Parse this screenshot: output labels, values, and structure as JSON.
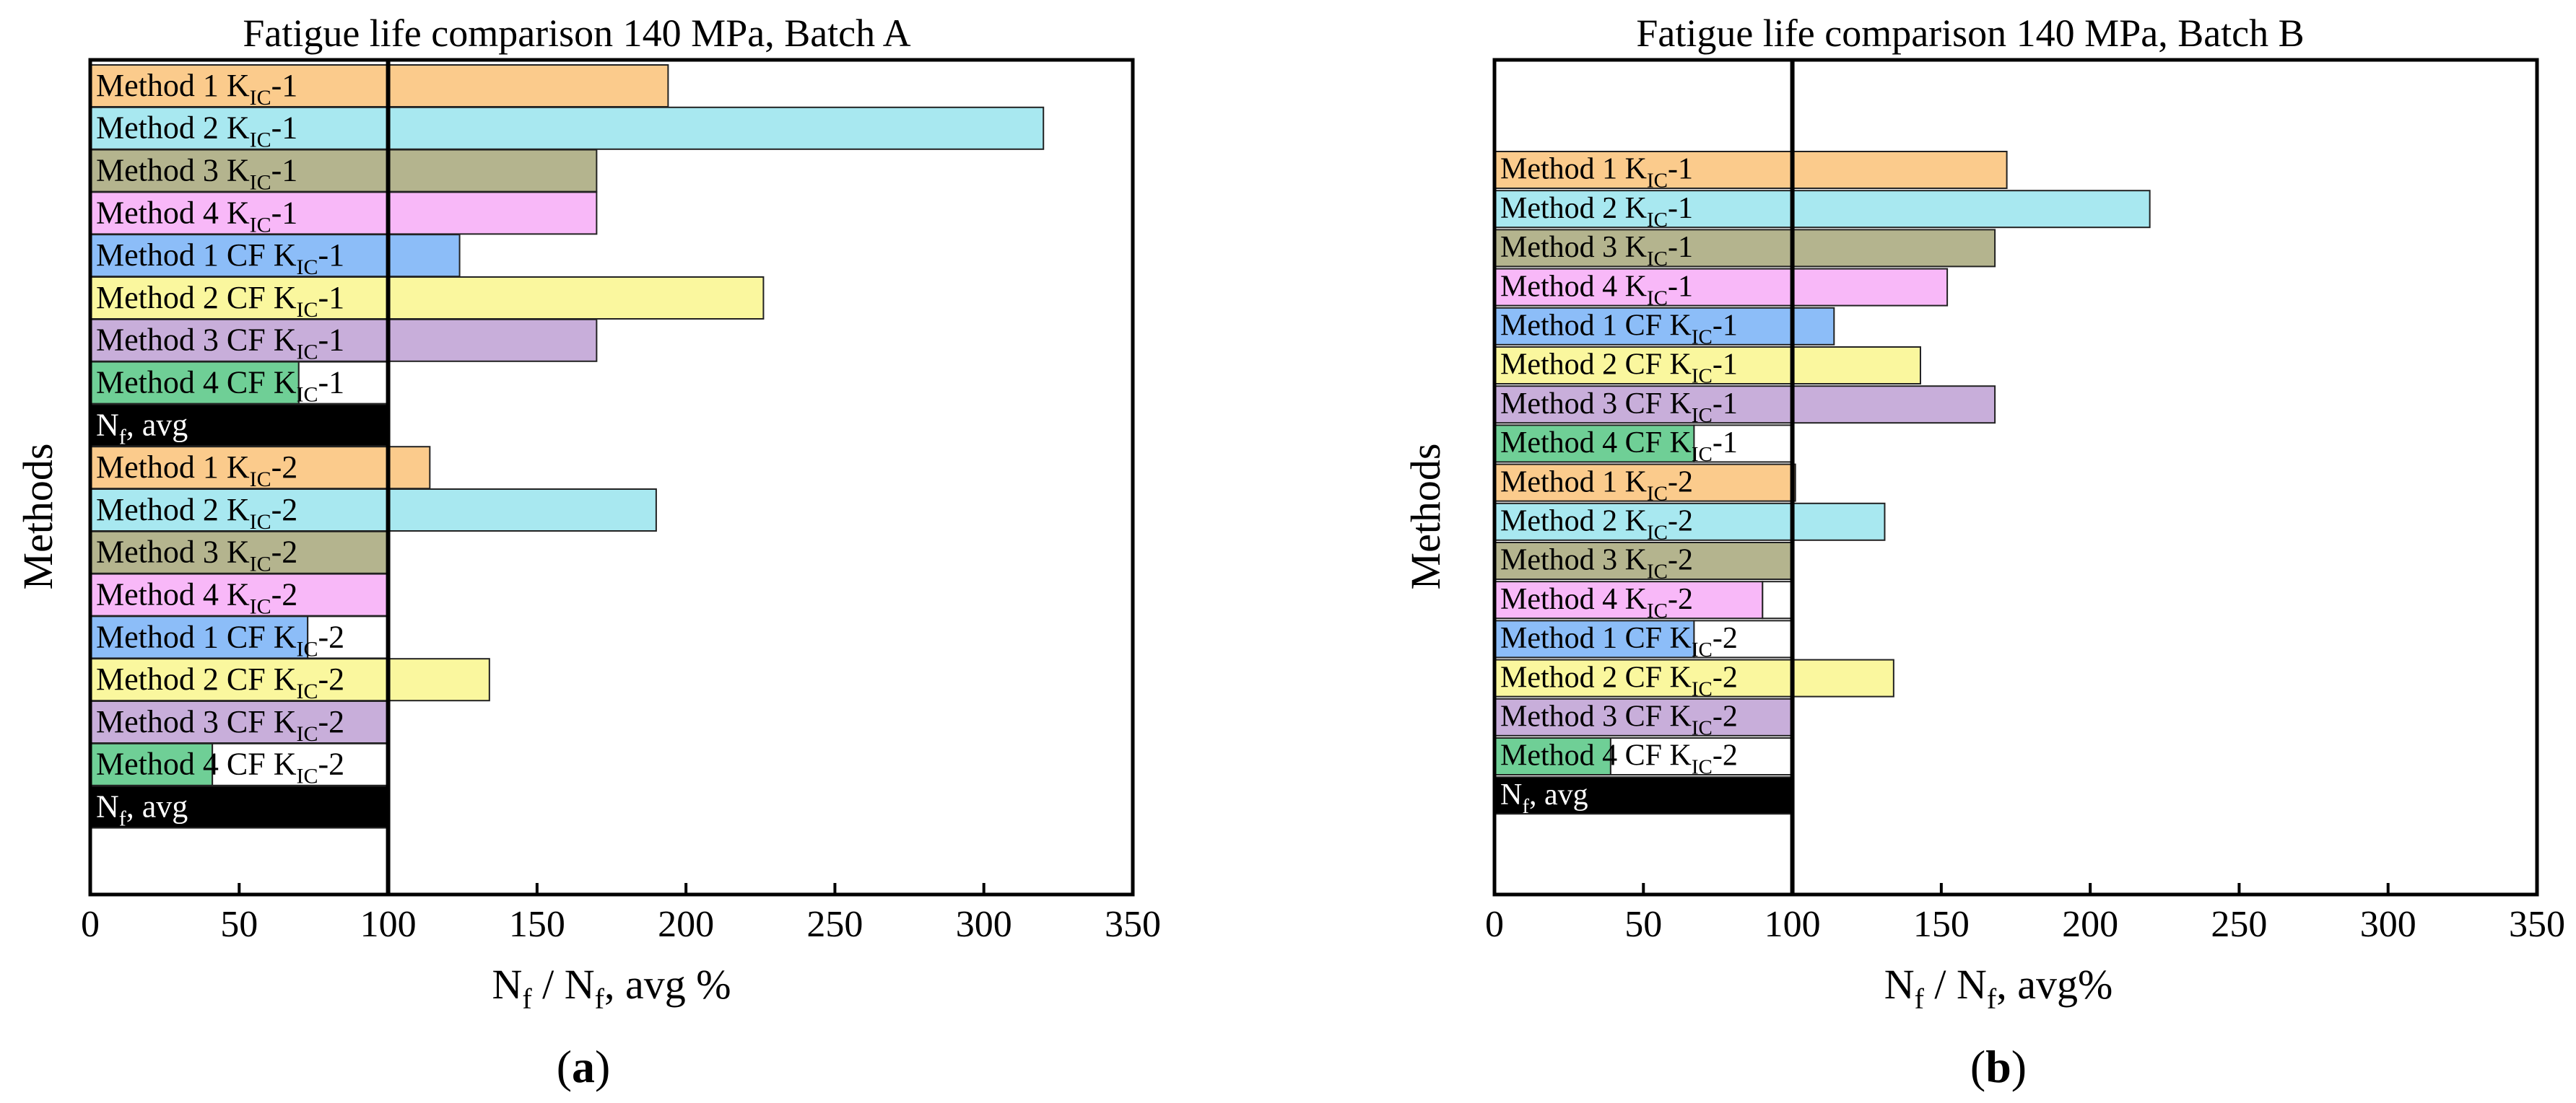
{
  "figure": {
    "panels": [
      {
        "label": "a"
      },
      {
        "label": "b"
      }
    ]
  },
  "colors": {
    "method1": "#FBCB8C",
    "method2": "#A8E8F0",
    "method3": "#B4B48E",
    "method4": "#F8B8F8",
    "method1cf": "#8CBDF8",
    "method2cf": "#FAF79E",
    "method3cf": "#C8AEDA",
    "method4cf": "#6FCF96",
    "avg": "#000000"
  },
  "chart_data": [
    {
      "type": "bar",
      "orientation": "horizontal",
      "title": "Fatigue life comparison 140 MPa, Batch A",
      "xlabel_main": "N",
      "xlabel_sub1": "f",
      "xlabel_mid": " / N",
      "xlabel_sub2": "f",
      "xlabel_end": ", avg %",
      "ylabel": "Methods",
      "xlim": [
        0,
        350
      ],
      "xticks": [
        "0",
        "50",
        "100",
        "150",
        "200",
        "250",
        "300",
        "350"
      ],
      "reference_line": 100,
      "categories": [
        {
          "pre": "Method 1 K",
          "sub": "IC",
          "post": "-1",
          "value": 194,
          "color": "method1"
        },
        {
          "pre": "Method 2 K",
          "sub": "IC",
          "post": "-1",
          "value": 320,
          "color": "method2"
        },
        {
          "pre": "Method 3 K",
          "sub": "IC",
          "post": "-1",
          "value": 170,
          "color": "method3"
        },
        {
          "pre": "Method 4 K",
          "sub": "IC",
          "post": "-1",
          "value": 170,
          "color": "method4"
        },
        {
          "pre": "Method 1 CF K",
          "sub": "IC",
          "post": "-1",
          "value": 124,
          "color": "method1cf"
        },
        {
          "pre": "Method 2 CF K",
          "sub": "IC",
          "post": "-1",
          "value": 226,
          "color": "method2cf"
        },
        {
          "pre": "Method 3 CF K",
          "sub": "IC",
          "post": "-1",
          "value": 170,
          "color": "method3cf"
        },
        {
          "pre": "Method 4 CF K",
          "sub": "IC",
          "post": "-1",
          "value": 70,
          "color": "method4cf"
        },
        {
          "pre": "N",
          "sub": "f",
          "post": ", avg",
          "value": 100,
          "color": "avg"
        },
        {
          "pre": "Method 1 K",
          "sub": "IC",
          "post": "-2",
          "value": 114,
          "color": "method1"
        },
        {
          "pre": "Method 2 K",
          "sub": "IC",
          "post": "-2",
          "value": 190,
          "color": "method2"
        },
        {
          "pre": "Method 3 K",
          "sub": "IC",
          "post": "-2",
          "value": 100,
          "color": "method3"
        },
        {
          "pre": "Method 4 K",
          "sub": "IC",
          "post": "-2",
          "value": 100,
          "color": "method4"
        },
        {
          "pre": "Method 1 CF K",
          "sub": "IC",
          "post": "-2",
          "value": 73,
          "color": "method1cf"
        },
        {
          "pre": "Method 2 CF K",
          "sub": "IC",
          "post": "-2",
          "value": 134,
          "color": "method2cf"
        },
        {
          "pre": "Method 3 CF K",
          "sub": "IC",
          "post": "-2",
          "value": 100,
          "color": "method3cf"
        },
        {
          "pre": "Method 4 CF K",
          "sub": "IC",
          "post": "-2",
          "value": 41,
          "color": "method4cf"
        },
        {
          "pre": "N",
          "sub": "f",
          "post": ", avg",
          "value": 100,
          "color": "avg"
        }
      ]
    },
    {
      "type": "bar",
      "orientation": "horizontal",
      "title": "Fatigue life comparison 140 MPa, Batch B",
      "xlabel_main": "N",
      "xlabel_sub1": "f",
      "xlabel_mid": " / N",
      "xlabel_sub2": "f",
      "xlabel_end": ", avg%",
      "ylabel": "Methods",
      "xlim": [
        0,
        350
      ],
      "xticks": [
        "0",
        "50",
        "100",
        "150",
        "200",
        "250",
        "300",
        "350"
      ],
      "reference_line": 100,
      "categories": [
        {
          "pre": "Method 1 K",
          "sub": "IC",
          "post": "-1",
          "value": 172,
          "color": "method1"
        },
        {
          "pre": "Method 2 K",
          "sub": "IC",
          "post": "-1",
          "value": 220,
          "color": "method2"
        },
        {
          "pre": "Method 3 K",
          "sub": "IC",
          "post": "-1",
          "value": 168,
          "color": "method3"
        },
        {
          "pre": "Method 4 K",
          "sub": "IC",
          "post": "-1",
          "value": 152,
          "color": "method4"
        },
        {
          "pre": "Method 1 CF K",
          "sub": "IC",
          "post": "-1",
          "value": 114,
          "color": "method1cf"
        },
        {
          "pre": "Method 2 CF K",
          "sub": "IC",
          "post": "-1",
          "value": 143,
          "color": "method2cf"
        },
        {
          "pre": "Method 3 CF K",
          "sub": "IC",
          "post": "-1",
          "value": 168,
          "color": "method3cf"
        },
        {
          "pre": "Method 4 CF K",
          "sub": "IC",
          "post": "-1",
          "value": 67,
          "color": "method4cf"
        },
        {
          "pre": "Method 1 K",
          "sub": "IC",
          "post": "-2",
          "value": 101,
          "color": "method1"
        },
        {
          "pre": "Method 2 K",
          "sub": "IC",
          "post": "-2",
          "value": 131,
          "color": "method2"
        },
        {
          "pre": "Method 3 K",
          "sub": "IC",
          "post": "-2",
          "value": 100,
          "color": "method3"
        },
        {
          "pre": "Method 4 K",
          "sub": "IC",
          "post": "-2",
          "value": 90,
          "color": "method4"
        },
        {
          "pre": "Method 1 CF K",
          "sub": "IC",
          "post": "-2",
          "value": 67,
          "color": "method1cf"
        },
        {
          "pre": "Method 2 CF K",
          "sub": "IC",
          "post": "-2",
          "value": 134,
          "color": "method2cf"
        },
        {
          "pre": "Method 3 CF K",
          "sub": "IC",
          "post": "-2",
          "value": 100,
          "color": "method3cf"
        },
        {
          "pre": "Method 4 CF K",
          "sub": "IC",
          "post": "-2",
          "value": 39,
          "color": "method4cf"
        },
        {
          "pre": "N",
          "sub": "f",
          "post": ", avg",
          "value": 100,
          "color": "avg"
        }
      ]
    }
  ]
}
